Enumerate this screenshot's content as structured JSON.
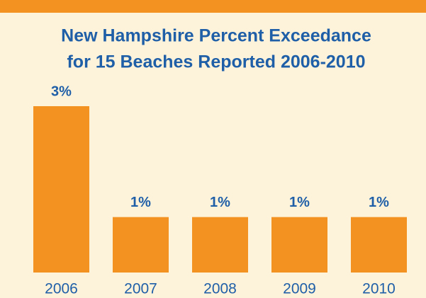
{
  "chart_data": {
    "type": "bar",
    "title": [
      "New Hampshire Percent Exceedance",
      "for 15 Beaches Reported 2006-2010"
    ],
    "categories": [
      "2006",
      "2007",
      "2008",
      "2009",
      "2010"
    ],
    "values": [
      3,
      1,
      1,
      1,
      1
    ],
    "value_labels": [
      "3%",
      "1%",
      "1%",
      "1%",
      "1%"
    ],
    "color": "#f39220"
  }
}
